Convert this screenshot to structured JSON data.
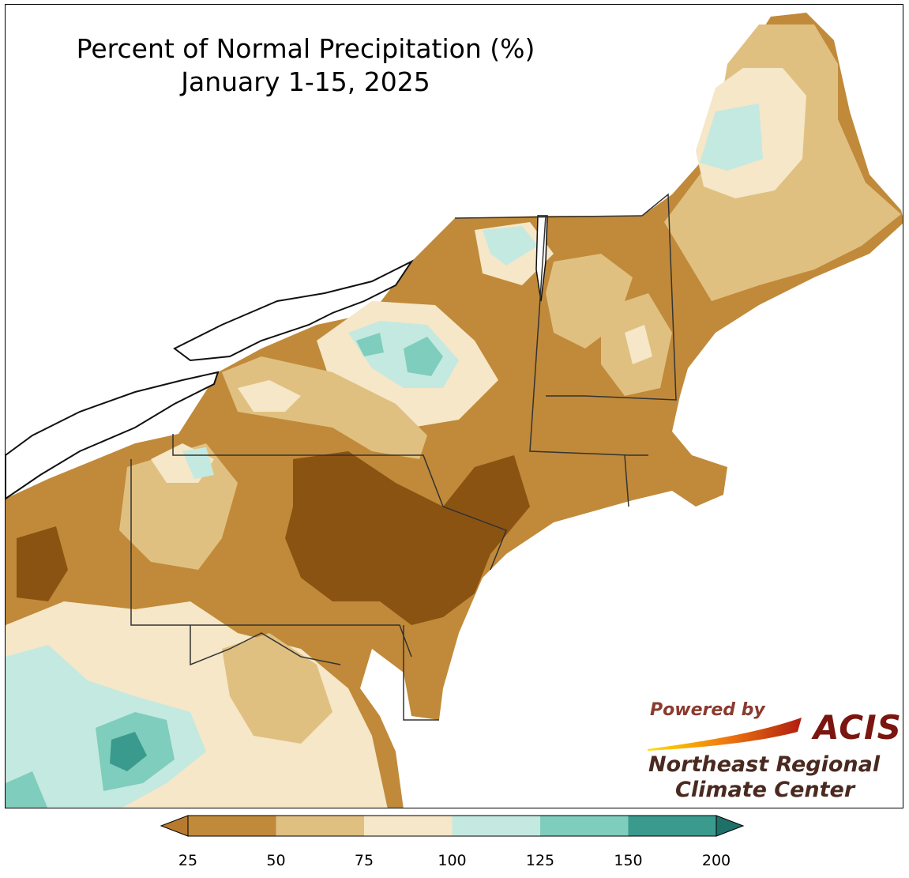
{
  "title": {
    "line1": "Percent of Normal Precipitation (%)",
    "line2": "January 1-15, 2025"
  },
  "logo": {
    "powered_by": "Powered by",
    "acis": "ACIS",
    "org_line1": "Northeast Regional",
    "org_line2": "Climate Center"
  },
  "legend": {
    "ticks": [
      "25",
      "50",
      "75",
      "100",
      "125",
      "150",
      "200"
    ],
    "bins": [
      {
        "range": "<25",
        "color": "#b87a2e"
      },
      {
        "range": "25-50",
        "color": "#c08a3a"
      },
      {
        "range": "50-75",
        "color": "#e0c080"
      },
      {
        "range": "75-100",
        "color": "#f5e7c7"
      },
      {
        "range": "100-125",
        "color": "#c4e9e1"
      },
      {
        "range": "125-150",
        "color": "#7fcdbc"
      },
      {
        "range": "150-200",
        "color": "#3a9a8e"
      },
      {
        "range": ">200",
        "color": "#1f7068"
      }
    ],
    "extend": "both"
  },
  "colors": {
    "very_dry": "#8b5312",
    "dry": "#c08a3a",
    "below_normal": "#e0c080",
    "near_normal": "#f5e7c7",
    "above_normal": "#c4e9e1",
    "wet": "#7fcdbc",
    "very_wet": "#3a9a8e",
    "border": "#222222",
    "water": "#ffffff"
  }
}
